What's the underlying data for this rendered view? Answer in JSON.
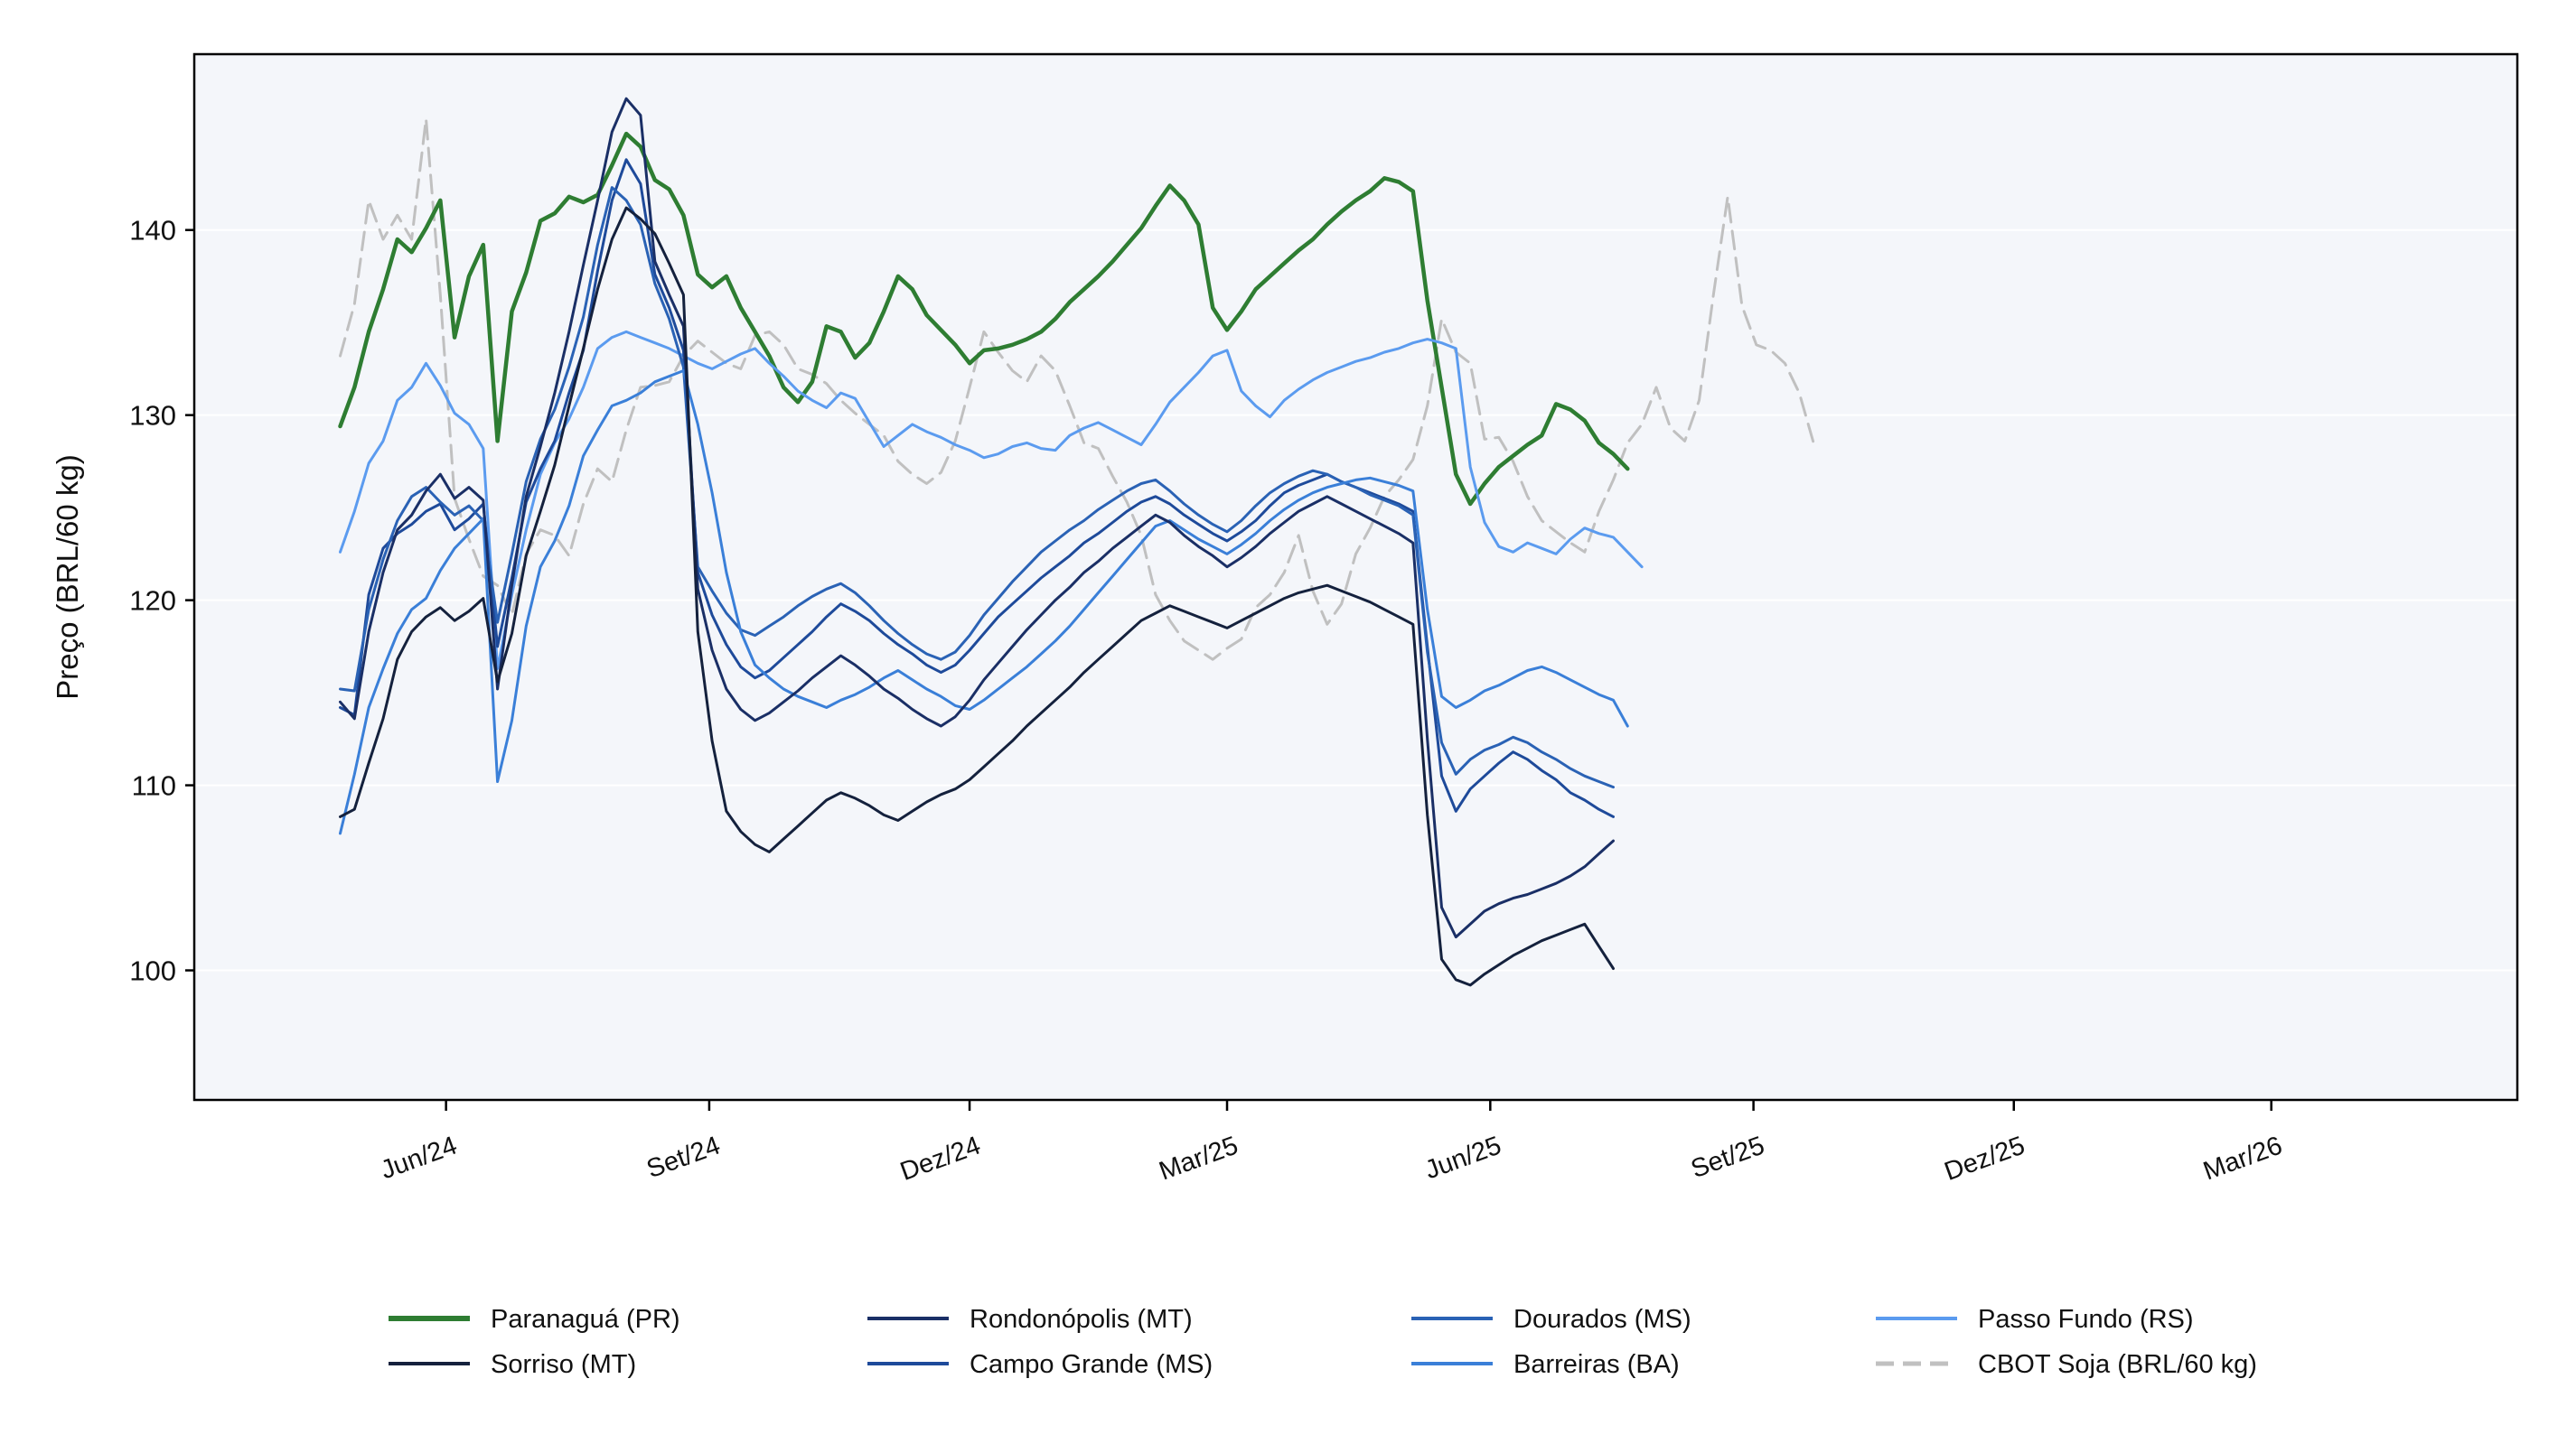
{
  "chart_data": {
    "type": "line",
    "title": "",
    "xlabel": "",
    "ylabel": "Preço (BRL/60 kg)",
    "ylim": [
      93,
      149.5
    ],
    "xlim": [
      "2024-03-05",
      "2026-05-26"
    ],
    "x_start": "2024-04-25",
    "x_step_days": 5,
    "grid": "horizontal",
    "legend_position": "bottom",
    "legend_columns": 4,
    "background": "#f4f6fa",
    "yticks": [
      100,
      110,
      120,
      130,
      140
    ],
    "xticks": [
      {
        "date": "2024-06-01",
        "label": "Jun/24"
      },
      {
        "date": "2024-09-01",
        "label": "Set/24"
      },
      {
        "date": "2024-12-01",
        "label": "Dez/24"
      },
      {
        "date": "2025-03-01",
        "label": "Mar/25"
      },
      {
        "date": "2025-06-01",
        "label": "Jun/25"
      },
      {
        "date": "2025-09-01",
        "label": "Set/25"
      },
      {
        "date": "2025-12-01",
        "label": "Dez/25"
      },
      {
        "date": "2026-03-01",
        "label": "Mar/26"
      }
    ],
    "series": [
      {
        "name": "CBOT Soja (BRL/60 kg)",
        "color": "#c0c0c0",
        "dash": "dashed",
        "width": 3,
        "values": [
          133.2,
          136,
          141.6,
          139.5,
          140.8,
          139.5,
          146,
          136.5,
          125.5,
          123.3,
          121.3,
          120.8,
          119.2,
          122.5,
          123.8,
          123.5,
          122.4,
          125.2,
          127.1,
          126.4,
          129.2,
          131.5,
          131.6,
          131.8,
          133.2,
          134,
          133.4,
          132.8,
          132.5,
          134.3,
          134.5,
          133.8,
          132.5,
          132.2,
          131.7,
          130.8,
          130.1,
          129.5,
          128.9,
          127.5,
          126.8,
          126.3,
          126.9,
          128.6,
          131.5,
          134.5,
          133.4,
          132.4,
          131.8,
          133.2,
          132.4,
          130.5,
          128.5,
          128.2,
          126.7,
          125.3,
          123.5,
          120.3,
          118.9,
          117.8,
          117.3,
          116.8,
          117.4,
          117.9,
          119.6,
          120.3,
          121.5,
          123.5,
          120.5,
          118.7,
          119.8,
          122.5,
          123.9,
          125.6,
          126.5,
          127.6,
          130.5,
          135.2,
          133.4,
          132.8,
          128.7,
          128.8,
          127.5,
          125.6,
          124.3,
          123.7,
          123.1,
          122.6,
          124.8,
          126.5,
          128.5,
          129.5,
          131.5,
          129.3,
          128.6,
          130.8,
          136.5,
          141.8,
          135.9,
          133.8,
          133.5,
          132.8,
          131.2,
          128.5
        ]
      },
      {
        "name": "Paranaguá (PR)",
        "color": "#2e7d32",
        "dash": "solid",
        "width": 4.5,
        "values": [
          129.4,
          131.5,
          134.5,
          136.8,
          139.5,
          138.8,
          140.1,
          141.6,
          134.2,
          137.5,
          139.2,
          128.6,
          135.6,
          137.7,
          140.5,
          140.9,
          141.8,
          141.5,
          141.9,
          143.5,
          145.2,
          144.5,
          142.7,
          142.2,
          140.8,
          137.6,
          136.9,
          137.5,
          135.8,
          134.5,
          133.2,
          131.5,
          130.7,
          131.8,
          134.8,
          134.5,
          133.1,
          133.9,
          135.6,
          137.5,
          136.8,
          135.4,
          134.6,
          133.8,
          132.8,
          133.5,
          133.6,
          133.8,
          134.1,
          134.5,
          135.2,
          136.1,
          136.8,
          137.5,
          138.3,
          139.2,
          140.1,
          141.3,
          142.4,
          141.6,
          140.3,
          135.8,
          134.6,
          135.6,
          136.8,
          137.5,
          138.2,
          138.9,
          139.5,
          140.3,
          141,
          141.6,
          142.1,
          142.8,
          142.6,
          142.1,
          136.2,
          131.5,
          126.8,
          125.2,
          126.3,
          127.2,
          127.8,
          128.4,
          128.9,
          130.6,
          130.3,
          129.7,
          128.5,
          127.9,
          127.1
        ]
      },
      {
        "name": "Passo Fundo (RS)",
        "color": "#5b9bef",
        "dash": "solid",
        "width": 3,
        "values": [
          122.6,
          124.8,
          127.4,
          128.6,
          130.8,
          131.5,
          132.8,
          131.6,
          130.1,
          129.5,
          128.2,
          116.3,
          120.3,
          123.8,
          126.8,
          128.5,
          129.8,
          131.5,
          133.6,
          134.2,
          134.5,
          134.2,
          133.9,
          133.6,
          133.2,
          132.8,
          132.5,
          132.9,
          133.3,
          133.6,
          132.8,
          132.1,
          131.3,
          130.8,
          130.4,
          131.2,
          130.9,
          129.6,
          128.3,
          128.9,
          129.5,
          129.1,
          128.8,
          128.4,
          128.1,
          127.7,
          127.9,
          128.3,
          128.5,
          128.2,
          128.1,
          128.9,
          129.3,
          129.6,
          129.2,
          128.8,
          128.4,
          129.5,
          130.7,
          131.5,
          132.3,
          133.2,
          133.5,
          131.3,
          130.5,
          129.9,
          130.8,
          131.4,
          131.9,
          132.3,
          132.6,
          132.9,
          133.1,
          133.4,
          133.6,
          133.9,
          134.1,
          133.9,
          133.6,
          127.2,
          124.2,
          122.9,
          122.6,
          123.1,
          122.8,
          122.5,
          123.3,
          123.9,
          123.6,
          123.4,
          122.6,
          121.8
        ]
      },
      {
        "name": "Campo Grande (MS)",
        "color": "#1e4a9a",
        "dash": "solid",
        "width": 3,
        "values": [
          114.2,
          113.8,
          120.3,
          122.8,
          123.6,
          124.1,
          124.8,
          125.2,
          123.8,
          124.4,
          125.2,
          117.5,
          121.2,
          125.3,
          127.1,
          128.6,
          131.2,
          133.5,
          137.8,
          141.6,
          143.8,
          142.5,
          137.6,
          135.8,
          133.5,
          121.5,
          119.2,
          117.6,
          116.4,
          115.8,
          116.2,
          116.9,
          117.6,
          118.3,
          119.1,
          119.8,
          119.4,
          118.9,
          118.2,
          117.6,
          117.1,
          116.5,
          116.1,
          116.5,
          117.3,
          118.2,
          119.1,
          119.8,
          120.5,
          121.2,
          121.8,
          122.4,
          123.1,
          123.6,
          124.2,
          124.8,
          125.3,
          125.6,
          125.2,
          124.6,
          124.1,
          123.6,
          123.2,
          123.7,
          124.3,
          125.1,
          125.8,
          126.2,
          126.5,
          126.8,
          126.4,
          126.1,
          125.8,
          125.5,
          125.2,
          124.8,
          117.5,
          110.5,
          108.6,
          109.8,
          110.5,
          111.2,
          111.8,
          111.4,
          110.8,
          110.3,
          109.6,
          109.2,
          108.7,
          108.3
        ]
      },
      {
        "name": "Dourados (MS)",
        "color": "#2a62b5",
        "dash": "solid",
        "width": 3,
        "values": [
          115.2,
          115.1,
          119.5,
          122.2,
          124.3,
          125.6,
          126.1,
          125.3,
          124.6,
          125.1,
          124.3,
          118.8,
          122.5,
          126.4,
          128.7,
          130.3,
          132.6,
          135.3,
          139.2,
          142.3,
          141.6,
          140.3,
          137.1,
          135.2,
          132.6,
          121.8,
          120.5,
          119.3,
          118.4,
          118.1,
          118.6,
          119.1,
          119.7,
          120.2,
          120.6,
          120.9,
          120.4,
          119.7,
          118.9,
          118.2,
          117.6,
          117.1,
          116.8,
          117.2,
          118.1,
          119.2,
          120.1,
          121,
          121.8,
          122.6,
          123.2,
          123.8,
          124.3,
          124.9,
          125.4,
          125.9,
          126.3,
          126.5,
          125.9,
          125.2,
          124.6,
          124.1,
          123.7,
          124.3,
          125.1,
          125.8,
          126.3,
          126.7,
          127,
          126.8,
          126.4,
          126.1,
          125.7,
          125.4,
          125.1,
          124.6,
          117.2,
          112.3,
          110.6,
          111.4,
          111.9,
          112.2,
          112.6,
          112.3,
          111.8,
          111.4,
          110.9,
          110.5,
          110.2,
          109.9
        ]
      },
      {
        "name": "Barreiras (BA)",
        "color": "#3a7fd8",
        "dash": "solid",
        "width": 3,
        "values": [
          107.4,
          110.6,
          114.2,
          116.3,
          118.2,
          119.5,
          120.1,
          121.6,
          122.8,
          123.6,
          124.4,
          110.2,
          113.5,
          118.6,
          121.8,
          123.2,
          125.1,
          127.8,
          129.2,
          130.5,
          130.8,
          131.2,
          131.8,
          132.1,
          132.4,
          129.5,
          125.8,
          121.5,
          118.3,
          116.5,
          115.8,
          115.2,
          114.8,
          114.5,
          114.2,
          114.6,
          114.9,
          115.3,
          115.8,
          116.2,
          115.7,
          115.2,
          114.8,
          114.3,
          114.1,
          114.6,
          115.2,
          115.8,
          116.4,
          117.1,
          117.8,
          118.6,
          119.5,
          120.4,
          121.3,
          122.2,
          123.1,
          124,
          124.3,
          123.8,
          123.3,
          122.9,
          122.5,
          123,
          123.6,
          124.3,
          124.9,
          125.4,
          125.8,
          126.1,
          126.3,
          126.5,
          126.6,
          126.4,
          126.2,
          125.9,
          119.5,
          114.8,
          114.2,
          114.6,
          115.1,
          115.4,
          115.8,
          116.2,
          116.4,
          116.1,
          115.7,
          115.3,
          114.9,
          114.6,
          113.2
        ]
      },
      {
        "name": "Rondonópolis (MT)",
        "color": "#1a2f66",
        "dash": "solid",
        "width": 3,
        "values": [
          114.5,
          113.6,
          118.3,
          121.5,
          123.8,
          124.6,
          125.9,
          126.8,
          125.5,
          126.1,
          125.4,
          115.2,
          120.8,
          125.6,
          128.3,
          131.2,
          134.5,
          138.1,
          141.6,
          145.3,
          147.1,
          146.2,
          138.3,
          136.5,
          134.8,
          120.6,
          117.3,
          115.2,
          114.1,
          113.5,
          113.9,
          114.5,
          115.1,
          115.8,
          116.4,
          117,
          116.5,
          115.9,
          115.2,
          114.7,
          114.1,
          113.6,
          113.2,
          113.7,
          114.6,
          115.7,
          116.6,
          117.5,
          118.4,
          119.2,
          120,
          120.7,
          121.5,
          122.1,
          122.8,
          123.4,
          124,
          124.6,
          124.2,
          123.5,
          122.9,
          122.4,
          121.8,
          122.3,
          122.9,
          123.6,
          124.2,
          124.8,
          125.2,
          125.6,
          125.2,
          124.8,
          124.4,
          124,
          123.6,
          123.1,
          112.5,
          103.4,
          101.8,
          102.5,
          103.2,
          103.6,
          103.9,
          104.1,
          104.4,
          104.7,
          105.1,
          105.6,
          106.3,
          107
        ]
      },
      {
        "name": "Sorriso (MT)",
        "color": "#14213d",
        "dash": "solid",
        "width": 3,
        "values": [
          108.3,
          108.7,
          111.2,
          113.6,
          116.8,
          118.3,
          119.1,
          119.6,
          118.9,
          119.4,
          120.1,
          115.6,
          118.2,
          122.4,
          124.8,
          127.3,
          130.5,
          133.6,
          136.8,
          139.5,
          141.2,
          140.6,
          139.8,
          138.2,
          136.5,
          118.3,
          112.4,
          108.6,
          107.5,
          106.8,
          106.4,
          107.1,
          107.8,
          108.5,
          109.2,
          109.6,
          109.3,
          108.9,
          108.4,
          108.1,
          108.6,
          109.1,
          109.5,
          109.8,
          110.3,
          111,
          111.7,
          112.4,
          113.2,
          113.9,
          114.6,
          115.3,
          116.1,
          116.8,
          117.5,
          118.2,
          118.9,
          119.3,
          119.7,
          119.4,
          119.1,
          118.8,
          118.5,
          118.9,
          119.3,
          119.7,
          120.1,
          120.4,
          120.6,
          120.8,
          120.5,
          120.2,
          119.9,
          119.5,
          119.1,
          118.7,
          108.4,
          100.6,
          99.5,
          99.2,
          99.8,
          100.3,
          100.8,
          101.2,
          101.6,
          101.9,
          102.2,
          102.5,
          101.3,
          100.1
        ]
      }
    ],
    "legend": [
      {
        "label": "Paranaguá (PR)",
        "color": "#2e7d32",
        "dash": "solid",
        "width": 6
      },
      {
        "label": "Sorriso (MT)",
        "color": "#14213d",
        "dash": "solid",
        "width": 4
      },
      {
        "label": "Rondonópolis (MT)",
        "color": "#1a2f66",
        "dash": "solid",
        "width": 4
      },
      {
        "label": "Campo Grande (MS)",
        "color": "#1e4a9a",
        "dash": "solid",
        "width": 4
      },
      {
        "label": "Dourados (MS)",
        "color": "#2a62b5",
        "dash": "solid",
        "width": 4
      },
      {
        "label": "Barreiras (BA)",
        "color": "#3a7fd8",
        "dash": "solid",
        "width": 4
      },
      {
        "label": "Passo Fundo (RS)",
        "color": "#5b9bef",
        "dash": "solid",
        "width": 4
      },
      {
        "label": "CBOT Soja (BRL/60 kg)",
        "color": "#c0c0c0",
        "dash": "dashed",
        "width": 5
      }
    ]
  }
}
